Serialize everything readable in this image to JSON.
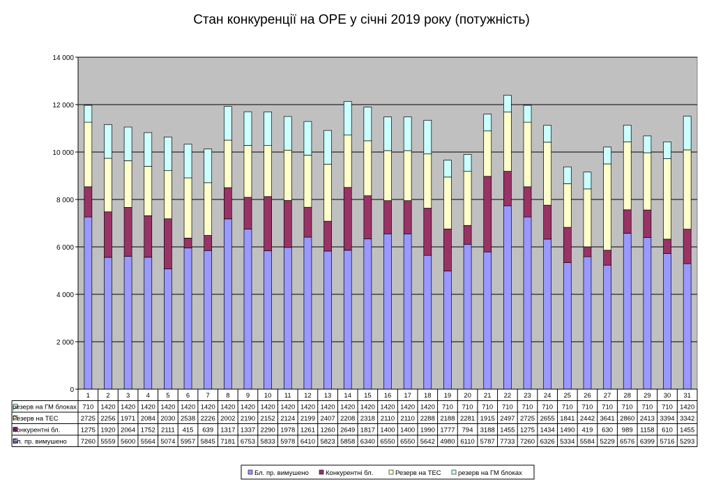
{
  "chart_data": {
    "type": "bar",
    "stacked": true,
    "title": "Стан конкуренції на ОРЕ  у січні 2019 року (потужність)",
    "categories": [
      "1",
      "2",
      "3",
      "4",
      "5",
      "6",
      "7",
      "8",
      "9",
      "10",
      "11",
      "12",
      "13",
      "14",
      "15",
      "16",
      "17",
      "18",
      "19",
      "20",
      "21",
      "22",
      "23",
      "24",
      "25",
      "26",
      "27",
      "28",
      "29",
      "30",
      "31"
    ],
    "ylim": [
      0,
      14000
    ],
    "yticks": [
      0,
      2000,
      4000,
      6000,
      8000,
      10000,
      12000,
      14000
    ],
    "ytick_labels": [
      "0",
      "2 000",
      "4 000",
      "6 000",
      "8 000",
      "10 000",
      "12 000",
      "14 000"
    ],
    "grid": true,
    "legend_position": "bottom",
    "series": [
      {
        "name": "Бл. пр. вимушено",
        "color": "#9999ff",
        "values": [
          7260,
          5559,
          5600,
          5564,
          5074,
          5957,
          5845,
          7181,
          6753,
          5833,
          5978,
          6410,
          5823,
          5858,
          6340,
          6550,
          6550,
          5642,
          4980,
          6110,
          5787,
          7733,
          7260,
          6326,
          5334,
          5584,
          5229,
          6576,
          6399,
          5716,
          5293
        ]
      },
      {
        "name": "Конкурентні бл.",
        "color": "#993366",
        "values": [
          1275,
          1920,
          2064,
          1752,
          2111,
          415,
          639,
          1317,
          1337,
          2290,
          1978,
          1261,
          1260,
          2649,
          1817,
          1400,
          1400,
          1990,
          1777,
          794,
          3188,
          1455,
          1275,
          1434,
          1490,
          419,
          630,
          989,
          1158,
          610,
          1455
        ]
      },
      {
        "name": "Резерв на ТЕС",
        "color": "#ffffcc",
        "values": [
          2725,
          2256,
          1971,
          2084,
          2030,
          2538,
          2226,
          2002,
          2190,
          2152,
          2124,
          2199,
          2407,
          2208,
          2318,
          2110,
          2110,
          2288,
          2188,
          2281,
          1915,
          2497,
          2725,
          2655,
          1841,
          2442,
          3641,
          2860,
          2413,
          3394,
          3342
        ]
      },
      {
        "name": "резерв на ГМ блоках",
        "color": "#ccffff",
        "values": [
          710,
          1420,
          1420,
          1420,
          1420,
          1420,
          1420,
          1420,
          1420,
          1420,
          1420,
          1420,
          1420,
          1420,
          1420,
          1420,
          1420,
          1420,
          710,
          710,
          710,
          710,
          710,
          710,
          710,
          710,
          710,
          710,
          710,
          710,
          1420
        ]
      }
    ],
    "table_rows_order": [
      "резерв на ГМ блоках",
      "Резерв на ТЕС",
      "Конкурентні бл.",
      "Бл. пр. вимушено"
    ]
  }
}
